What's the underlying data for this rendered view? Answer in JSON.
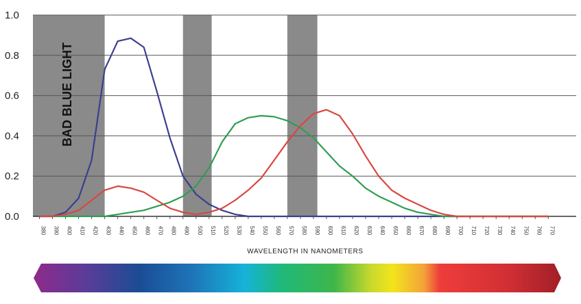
{
  "chart_data": {
    "type": "line",
    "xlabel": "WAVELENGTH IN NANOMETERS",
    "ylabel": "",
    "xlim": [
      375,
      775
    ],
    "ylim": [
      0,
      1.0
    ],
    "yticks": [
      "0.0",
      "0.2",
      "0.4",
      "0.6",
      "0.8",
      "1.0"
    ],
    "yticks_values": [
      0,
      0.2,
      0.4,
      0.6,
      0.8,
      1.0
    ],
    "x_ticks": [
      380,
      390,
      400,
      410,
      420,
      430,
      440,
      450,
      460,
      470,
      480,
      490,
      500,
      510,
      520,
      530,
      540,
      550,
      560,
      570,
      580,
      590,
      600,
      610,
      620,
      630,
      640,
      650,
      660,
      670,
      680,
      690,
      700,
      710,
      720,
      730,
      740,
      750,
      760,
      770
    ],
    "annotation": "BAD BLUE LIGHT",
    "shaded_bands": [
      [
        375,
        430
      ],
      [
        490,
        512
      ],
      [
        570,
        593
      ]
    ],
    "grid": true,
    "legend": "none",
    "spectrum_bar": true,
    "series": [
      {
        "color": "#3b3f8f",
        "x": [
          380,
          390,
          400,
          410,
          420,
          430,
          440,
          450,
          460,
          470,
          480,
          490,
          500,
          510,
          520,
          530,
          540,
          550,
          560,
          570,
          580,
          590,
          600,
          610,
          620,
          630,
          640,
          650,
          660,
          670,
          680,
          690,
          700,
          710,
          720,
          730,
          740,
          750,
          760,
          770
        ],
        "values": [
          0.0,
          0.0,
          0.02,
          0.09,
          0.28,
          0.73,
          0.87,
          0.885,
          0.84,
          0.62,
          0.39,
          0.2,
          0.11,
          0.06,
          0.03,
          0.01,
          0.0,
          0.0,
          0.0,
          0.0,
          0.0,
          0.0,
          0.0,
          0.0,
          0.0,
          0.0,
          0.0,
          0.0,
          0.0,
          0.0,
          0.0,
          0.0,
          0.0,
          0.0,
          0.0,
          0.0,
          0.0,
          0.0,
          0.0,
          0.0
        ]
      },
      {
        "color": "#2e9e52",
        "x": [
          380,
          390,
          400,
          410,
          420,
          430,
          440,
          450,
          460,
          470,
          480,
          490,
          500,
          510,
          520,
          530,
          540,
          550,
          560,
          570,
          580,
          590,
          600,
          610,
          620,
          630,
          640,
          650,
          660,
          670,
          680,
          690,
          700,
          710,
          720,
          730,
          740,
          750,
          760,
          770
        ],
        "values": [
          0.0,
          0.0,
          0.0,
          0.0,
          0.0,
          0.0,
          0.01,
          0.02,
          0.03,
          0.05,
          0.07,
          0.1,
          0.15,
          0.24,
          0.37,
          0.46,
          0.49,
          0.5,
          0.495,
          0.475,
          0.44,
          0.39,
          0.32,
          0.25,
          0.2,
          0.14,
          0.1,
          0.07,
          0.04,
          0.02,
          0.01,
          0.0,
          0.0,
          0.0,
          0.0,
          0.0,
          0.0,
          0.0,
          0.0,
          0.0
        ]
      },
      {
        "color": "#d9473f",
        "x": [
          380,
          390,
          400,
          410,
          420,
          430,
          440,
          450,
          460,
          470,
          480,
          490,
          500,
          510,
          520,
          530,
          540,
          550,
          560,
          570,
          580,
          590,
          600,
          610,
          620,
          630,
          640,
          650,
          660,
          670,
          680,
          690,
          700,
          710,
          720,
          730,
          740,
          750,
          760,
          770
        ],
        "values": [
          0.0,
          0.0,
          0.01,
          0.03,
          0.08,
          0.13,
          0.15,
          0.14,
          0.12,
          0.08,
          0.04,
          0.02,
          0.01,
          0.02,
          0.04,
          0.08,
          0.13,
          0.19,
          0.28,
          0.37,
          0.45,
          0.51,
          0.53,
          0.5,
          0.41,
          0.3,
          0.2,
          0.13,
          0.09,
          0.06,
          0.03,
          0.01,
          0.0,
          0.0,
          0.0,
          0.0,
          0.0,
          0.0,
          0.0,
          0.0
        ]
      }
    ]
  }
}
